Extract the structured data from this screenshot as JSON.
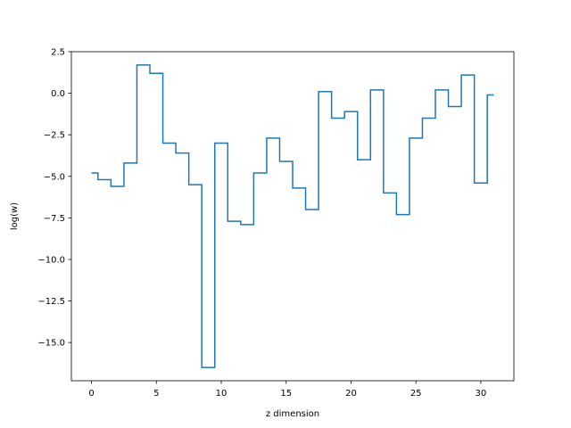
{
  "chart_data": {
    "type": "line",
    "drawstyle": "steps-mid",
    "title": "",
    "xlabel": "z dimension",
    "ylabel": "log(w)",
    "xlim": [
      -1.55,
      32.55
    ],
    "ylim": [
      -17.3,
      2.5
    ],
    "grid": false,
    "series_color": "#1f77b4",
    "x_ticks": [
      0,
      5,
      10,
      15,
      20,
      25,
      30
    ],
    "x_tick_labels": [
      "0",
      "5",
      "10",
      "15",
      "20",
      "25",
      "30"
    ],
    "y_ticks": [
      2.5,
      0.0,
      -2.5,
      -5.0,
      -7.5,
      -10.0,
      -12.5,
      -15.0
    ],
    "y_tick_labels": [
      "2.5",
      "0.0",
      "−2.5",
      "−5.0",
      "−7.5",
      "−10.0",
      "−12.5",
      "−15.0"
    ],
    "series": [
      {
        "x": [
          0,
          1,
          2,
          3,
          4,
          5,
          6,
          7,
          8,
          9,
          10,
          11,
          12,
          13,
          14,
          15,
          16,
          17,
          18,
          19,
          20,
          21,
          22,
          23,
          24,
          25,
          26,
          27,
          28,
          29,
          30,
          31
        ],
        "values": [
          -4.8,
          -5.2,
          -5.6,
          -4.2,
          1.7,
          1.2,
          -3.0,
          -3.6,
          -5.5,
          -16.5,
          -3.0,
          -7.7,
          -7.9,
          -4.8,
          -2.7,
          -4.1,
          -5.7,
          -7.0,
          0.1,
          -1.5,
          -1.1,
          -4.0,
          0.2,
          -6.0,
          -7.3,
          -2.7,
          -1.5,
          0.2,
          -0.8,
          1.1,
          -5.4,
          -0.1
        ]
      }
    ]
  }
}
